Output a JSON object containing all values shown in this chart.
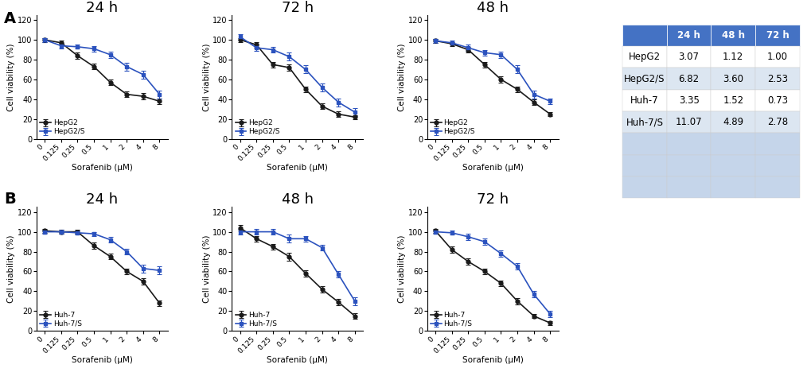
{
  "x_labels": [
    "0",
    "0.125",
    "0.25",
    "0.5",
    "1",
    "2",
    "4",
    "8"
  ],
  "x_idx": [
    0,
    1,
    2,
    3,
    4,
    5,
    6,
    7
  ],
  "panelA_24h_HepG2": [
    100,
    97,
    84,
    73,
    57,
    45,
    43,
    38
  ],
  "panelA_24h_HepG2S": [
    100,
    94,
    93,
    91,
    85,
    73,
    65,
    45
  ],
  "panelA_24h_HepG2_err": [
    2,
    2,
    3,
    3,
    3,
    3,
    3,
    3
  ],
  "panelA_24h_HepG2S_err": [
    2,
    3,
    2,
    3,
    3,
    4,
    4,
    4
  ],
  "panelA_72h_HepG2": [
    100,
    95,
    75,
    72,
    50,
    33,
    25,
    22
  ],
  "panelA_72h_HepG2S": [
    103,
    92,
    90,
    83,
    70,
    52,
    37,
    27
  ],
  "panelA_72h_HepG2_err": [
    2,
    3,
    3,
    3,
    3,
    3,
    3,
    2
  ],
  "panelA_72h_HepG2S_err": [
    3,
    3,
    3,
    4,
    4,
    4,
    4,
    4
  ],
  "panelA_48h_HepG2": [
    99,
    96,
    90,
    75,
    60,
    50,
    37,
    25
  ],
  "panelA_48h_HepG2S": [
    99,
    97,
    92,
    87,
    85,
    70,
    45,
    38
  ],
  "panelA_48h_HepG2_err": [
    2,
    2,
    3,
    3,
    3,
    3,
    3,
    2
  ],
  "panelA_48h_HepG2S_err": [
    2,
    2,
    3,
    3,
    3,
    4,
    4,
    3
  ],
  "panelB_24h_Huh7": [
    101,
    100,
    100,
    86,
    75,
    60,
    50,
    28
  ],
  "panelB_24h_Huh7S": [
    100,
    100,
    99,
    98,
    92,
    80,
    63,
    61
  ],
  "panelB_24h_Huh7_err": [
    2,
    2,
    2,
    3,
    3,
    3,
    3,
    3
  ],
  "panelB_24h_Huh7S_err": [
    2,
    2,
    2,
    2,
    3,
    3,
    4,
    4
  ],
  "panelB_48h_Huh7": [
    104,
    93,
    85,
    75,
    58,
    42,
    29,
    15
  ],
  "panelB_48h_Huh7S": [
    100,
    100,
    100,
    93,
    93,
    84,
    57,
    30
  ],
  "panelB_48h_Huh7_err": [
    3,
    3,
    3,
    4,
    3,
    3,
    3,
    3
  ],
  "panelB_48h_Huh7S_err": [
    3,
    3,
    3,
    4,
    3,
    3,
    3,
    4
  ],
  "panelB_72h_Huh7": [
    101,
    82,
    70,
    60,
    48,
    30,
    15,
    8
  ],
  "panelB_72h_Huh7S": [
    100,
    99,
    95,
    90,
    78,
    65,
    37,
    17
  ],
  "panelB_72h_Huh7_err": [
    2,
    3,
    3,
    3,
    3,
    3,
    2,
    2
  ],
  "panelB_72h_Huh7S_err": [
    2,
    2,
    3,
    3,
    3,
    3,
    3,
    3
  ],
  "black_color": "#1a1a1a",
  "blue_color": "#2b52be",
  "table_header_color": "#4472C4",
  "table_header_text_color": "#FFFFFF",
  "table_rows": [
    "HepG2",
    "HepG2/S",
    "Huh-7",
    "Huh-7/S"
  ],
  "table_cols": [
    "24 h",
    "48 h",
    "72 h"
  ],
  "table_data": [
    [
      "3.07",
      "1.12",
      "1.00"
    ],
    [
      "6.82",
      "3.60",
      "2.53"
    ],
    [
      "3.35",
      "1.52",
      "0.73"
    ],
    [
      "11.07",
      "4.89",
      "2.78"
    ]
  ],
  "table_row_colors": [
    "#FFFFFF",
    "#dce6f1",
    "#FFFFFF",
    "#dce6f1"
  ],
  "table_extra_row_color": "#c5d5ea",
  "ylim": [
    0,
    125
  ],
  "yticks": [
    0,
    20,
    40,
    60,
    80,
    100,
    120
  ]
}
